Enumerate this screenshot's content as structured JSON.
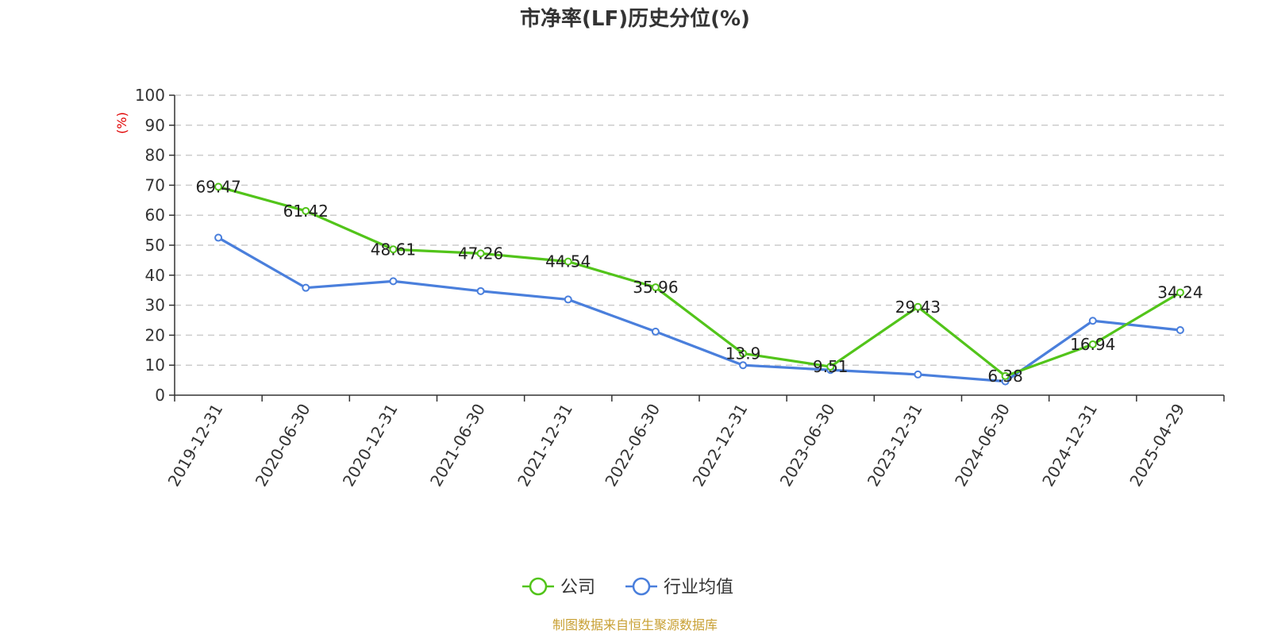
{
  "colors": {
    "company": "#52c41a",
    "industry": "#4a7fdc",
    "grid": "#cccccc",
    "axis": "#333333",
    "unit": "#e00000",
    "source": "#c8a034"
  },
  "chart_data": {
    "type": "line",
    "title": "市净率(LF)历史分位(%)",
    "ylabel": "(%)",
    "xlabel": "",
    "ylim": [
      0,
      100
    ],
    "yticks": [
      0,
      10,
      20,
      30,
      40,
      50,
      60,
      70,
      80,
      90,
      100
    ],
    "grid": true,
    "legend_position": "bottom-center",
    "categories": [
      "2019-12-31",
      "2020-06-30",
      "2020-12-31",
      "2021-06-30",
      "2021-12-31",
      "2022-06-30",
      "2022-12-31",
      "2023-06-30",
      "2023-12-31",
      "2024-06-30",
      "2024-12-31",
      "2025-04-29"
    ],
    "series": [
      {
        "name": "公司",
        "color": "#52c41a",
        "values": [
          69.47,
          61.42,
          48.61,
          47.26,
          44.54,
          35.96,
          13.9,
          9.51,
          29.43,
          6.38,
          16.94,
          34.24
        ],
        "labels": [
          "69.47",
          "61.42",
          "48.61",
          "47.26",
          "44.54",
          "35.96",
          "13.9",
          "9.51",
          "29.43",
          "6.38",
          "16.94",
          "34.24"
        ]
      },
      {
        "name": "行业均值",
        "color": "#4a7fdc",
        "values": [
          52.5,
          35.8,
          38.0,
          34.7,
          31.9,
          21.2,
          10.0,
          8.4,
          6.9,
          4.6,
          24.8,
          21.7
        ]
      }
    ]
  },
  "source": "制图数据来自恒生聚源数据库"
}
